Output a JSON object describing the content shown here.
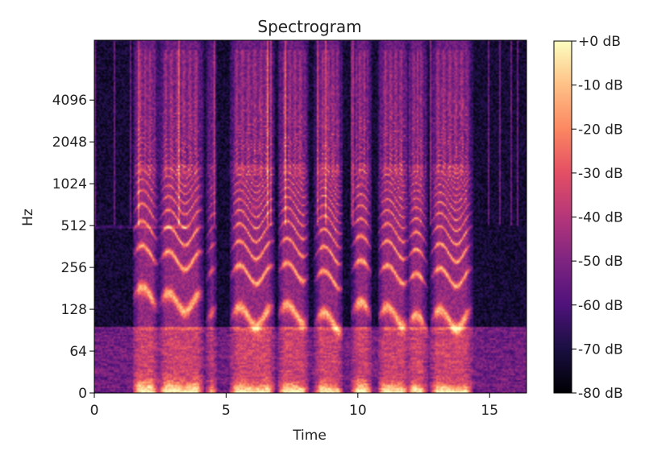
{
  "chart_data": {
    "type": "heatmap",
    "title": "Spectrogram",
    "xlabel": "Time",
    "ylabel": "Hz",
    "xlim": [
      0,
      16.4
    ],
    "x_ticks": [
      0,
      5,
      10,
      15
    ],
    "x_tick_labels": [
      "0",
      "5",
      "10",
      "15"
    ],
    "y_scale": "log2 (symlog)",
    "y_ticks": [
      0,
      64,
      128,
      256,
      512,
      1024,
      2048,
      4096
    ],
    "y_tick_labels": [
      "0",
      "64",
      "128",
      "256",
      "512",
      "1024",
      "2048",
      "4096"
    ],
    "y_max_hz": 11025,
    "colormap": "magma",
    "colorbar": {
      "range_db": [
        -80,
        0
      ],
      "ticks": [
        0,
        -10,
        -20,
        -30,
        -40,
        -50,
        -60,
        -70,
        -80
      ],
      "tick_labels": [
        "+0 dB",
        "-10 dB",
        "-20 dB",
        "-30 dB",
        "-40 dB",
        "-50 dB",
        "-60 dB",
        "-70 dB",
        "-80 dB"
      ]
    },
    "speech_segments": [
      {
        "start": 1.5,
        "end": 2.4,
        "f0": 160
      },
      {
        "start": 2.5,
        "end": 4.1,
        "f0": 145
      },
      {
        "start": 4.3,
        "end": 4.6,
        "f0": 110
      },
      {
        "start": 5.2,
        "end": 6.8,
        "f0": 115
      },
      {
        "start": 7.0,
        "end": 8.1,
        "f0": 120
      },
      {
        "start": 8.4,
        "end": 9.4,
        "f0": 105
      },
      {
        "start": 9.8,
        "end": 10.5,
        "f0": 125
      },
      {
        "start": 10.8,
        "end": 11.9,
        "f0": 115
      },
      {
        "start": 11.9,
        "end": 12.6,
        "f0": 100
      },
      {
        "start": 12.8,
        "end": 14.3,
        "f0": 110
      }
    ]
  }
}
